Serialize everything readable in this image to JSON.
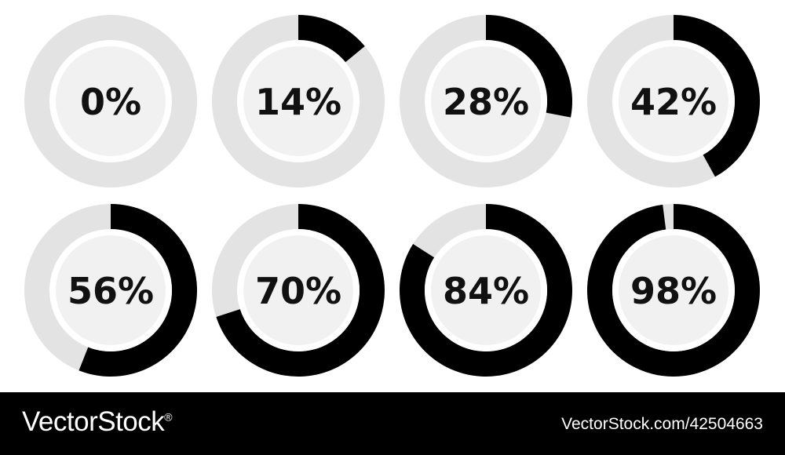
{
  "gauges": [
    {
      "value": 0,
      "label": "0%"
    },
    {
      "value": 14,
      "label": "14%"
    },
    {
      "value": 28,
      "label": "28%"
    },
    {
      "value": 42,
      "label": "42%"
    },
    {
      "value": 56,
      "label": "56%"
    },
    {
      "value": 70,
      "label": "70%"
    },
    {
      "value": 84,
      "label": "84%"
    },
    {
      "value": 98,
      "label": "98%"
    }
  ],
  "colors": {
    "progress": "#000000",
    "track": "#e3e3e3",
    "inner_ring": "#ffffff",
    "inner_fill": "#f1f1f1",
    "text": "#111111"
  },
  "footer": {
    "brand": "VectorStock",
    "brand_mark": "®",
    "ref": "VectorStock.com/42504663"
  }
}
